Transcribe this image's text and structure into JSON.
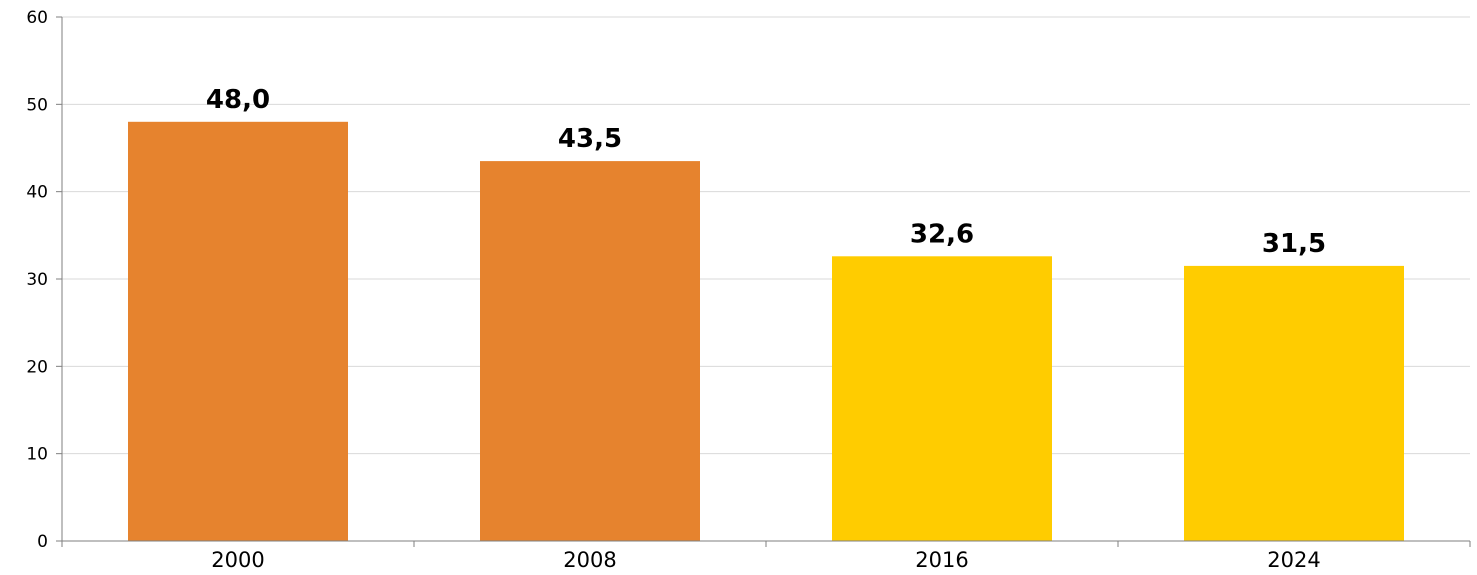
{
  "chart_data": {
    "type": "bar",
    "categories": [
      "2000",
      "2008",
      "2016",
      "2024"
    ],
    "values": [
      48.0,
      43.5,
      32.6,
      31.5
    ],
    "value_labels": [
      "48,0",
      "43,5",
      "32,6",
      "31,5"
    ],
    "bar_colors": [
      "#E6832E",
      "#E6832E",
      "#FFCC00",
      "#FFCC00"
    ],
    "ylim": [
      0,
      60
    ],
    "yticks": [
      0,
      10,
      20,
      30,
      40,
      50,
      60
    ],
    "grid": true,
    "grid_color": "#D9D9D9",
    "axis_color": "#7F7F7F",
    "xlabel": "",
    "ylabel": ""
  }
}
